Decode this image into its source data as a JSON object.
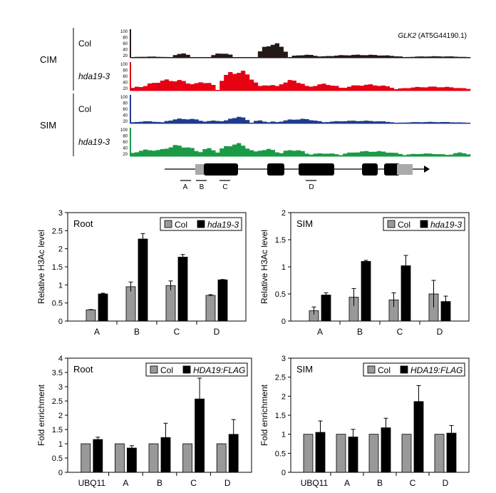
{
  "colors": {
    "col": "#999999",
    "mut": "#000000",
    "track_col_cim": "#231916",
    "track_mut_cim": "#e60012",
    "track_col_sim": "#1d3b8f",
    "track_mut_sim": "#1a9a45"
  },
  "tracks": {
    "gene_label": "GLK2",
    "gene_id": "(AT5G44190.1)",
    "groups": [
      {
        "label": "CIM",
        "rows": [
          {
            "name": "Col",
            "italic": false,
            "color_key": "track_col_cim",
            "ticks": [
              "100",
              "80",
              "60",
              "40",
              "20"
            ]
          },
          {
            "name": "hda19-3",
            "italic": true,
            "color_key": "track_mut_cim",
            "ticks": [
              "100",
              "80",
              "60",
              "40",
              "20"
            ]
          }
        ]
      },
      {
        "label": "SIM",
        "rows": [
          {
            "name": "Col",
            "italic": false,
            "color_key": "track_col_sim",
            "ticks": [
              "100",
              "80",
              "60",
              "40",
              "20"
            ]
          },
          {
            "name": "hda19-3",
            "italic": true,
            "color_key": "track_mut_sim",
            "ticks": [
              "100",
              "80",
              "60",
              "40",
              "20"
            ]
          }
        ]
      }
    ],
    "regions": [
      "A",
      "B",
      "C",
      "D"
    ]
  },
  "chart_data": [
    {
      "type": "bar",
      "panel": "Root",
      "ylabel": "Relative H3Ac level",
      "ylim": [
        0,
        3
      ],
      "yticks": [
        "0",
        "0.5",
        "1",
        "1.5",
        "2",
        "2.5",
        "3"
      ],
      "categories": [
        "A",
        "B",
        "C",
        "D"
      ],
      "legend": [
        "Col",
        "hda19-3"
      ],
      "legend_italic": [
        false,
        true
      ],
      "series": [
        {
          "name": "Col",
          "values": [
            0.31,
            0.95,
            0.98,
            0.71
          ],
          "errors": [
            0.01,
            0.13,
            0.13,
            0.02
          ]
        },
        {
          "name": "hda19-3",
          "values": [
            0.75,
            2.27,
            1.77,
            1.14
          ],
          "errors": [
            0.02,
            0.15,
            0.07,
            0.01
          ]
        }
      ]
    },
    {
      "type": "bar",
      "panel": "SIM",
      "ylabel": "Relative H3Ac level",
      "ylim": [
        0,
        2
      ],
      "yticks": [
        "0",
        "0.5",
        "1",
        "1.5",
        "2"
      ],
      "categories": [
        "A",
        "B",
        "C",
        "D"
      ],
      "legend": [
        "Col",
        "hda19-3"
      ],
      "legend_italic": [
        false,
        true
      ],
      "series": [
        {
          "name": "Col",
          "values": [
            0.19,
            0.44,
            0.39,
            0.5
          ],
          "errors": [
            0.07,
            0.16,
            0.13,
            0.25
          ]
        },
        {
          "name": "hda19-3",
          "values": [
            0.48,
            1.1,
            1.02,
            0.36
          ],
          "errors": [
            0.04,
            0.02,
            0.19,
            0.1
          ]
        }
      ]
    },
    {
      "type": "bar",
      "panel": "Root",
      "ylabel": "Fold enrichment",
      "ylim": [
        0,
        4
      ],
      "yticks": [
        "0",
        "0.5",
        "1",
        "1.5",
        "2",
        "2.5",
        "3",
        "3.5",
        "4"
      ],
      "categories": [
        "UBQ11",
        "A",
        "B",
        "C",
        "D"
      ],
      "legend": [
        "Col",
        "HDA19:FLAG"
      ],
      "legend_italic": [
        false,
        true
      ],
      "series": [
        {
          "name": "Col",
          "values": [
            1,
            1,
            1,
            1,
            1
          ],
          "errors": [
            0,
            0,
            0,
            0,
            0
          ]
        },
        {
          "name": "HDA19:FLAG",
          "values": [
            1.15,
            0.85,
            1.22,
            2.57,
            1.33
          ],
          "errors": [
            0.08,
            0.08,
            0.5,
            0.73,
            0.52
          ]
        }
      ]
    },
    {
      "type": "bar",
      "panel": "SIM",
      "ylabel": "Fold enrichment",
      "ylim": [
        0,
        3
      ],
      "yticks": [
        "0",
        "0.5",
        "1",
        "1.5",
        "2",
        "2.5",
        "3"
      ],
      "categories": [
        "UBQ11",
        "A",
        "B",
        "C",
        "D"
      ],
      "legend": [
        "Col",
        "HDA19:FLAG"
      ],
      "legend_italic": [
        false,
        true
      ],
      "series": [
        {
          "name": "Col",
          "values": [
            1,
            1,
            1,
            1,
            1
          ],
          "errors": [
            0,
            0,
            0,
            0,
            0
          ]
        },
        {
          "name": "HDA19:FLAG",
          "values": [
            1.05,
            0.93,
            1.17,
            1.86,
            1.03
          ],
          "errors": [
            0.3,
            0.2,
            0.25,
            0.42,
            0.2
          ]
        }
      ]
    }
  ]
}
